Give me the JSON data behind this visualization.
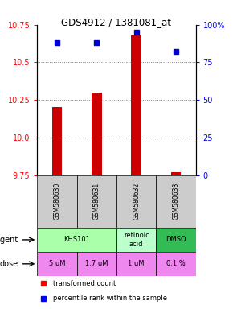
{
  "title": "GDS4912 / 1381081_at",
  "samples": [
    "GSM580630",
    "GSM580631",
    "GSM580632",
    "GSM580633"
  ],
  "bar_values": [
    10.2,
    10.3,
    10.68,
    9.77
  ],
  "bar_base": 9.75,
  "percentile_values": [
    88,
    88,
    95,
    82
  ],
  "ylim_left": [
    9.75,
    10.75
  ],
  "ylim_right": [
    0,
    100
  ],
  "yticks_left": [
    9.75,
    10.0,
    10.25,
    10.5,
    10.75
  ],
  "yticks_right": [
    0,
    25,
    50,
    75,
    100
  ],
  "ytick_labels_right": [
    "0",
    "25",
    "50",
    "75",
    "100%"
  ],
  "bar_color": "#cc0000",
  "dot_color": "#0000cc",
  "dose_labels": [
    "5 uM",
    "1.7 uM",
    "1 uM",
    "0.1 %"
  ],
  "dose_color": "#ee88ee",
  "sample_bg": "#cccccc",
  "legend_red": "transformed count",
  "legend_blue": "percentile rank within the sample",
  "agent_spans": [
    [
      0,
      2,
      "KHS101",
      "#aaffaa"
    ],
    [
      2,
      1,
      "retinoic\nacid",
      "#bbffcc"
    ],
    [
      3,
      1,
      "DMSO",
      "#33bb55"
    ]
  ],
  "gridline_ticks": [
    10.0,
    10.25,
    10.5
  ]
}
